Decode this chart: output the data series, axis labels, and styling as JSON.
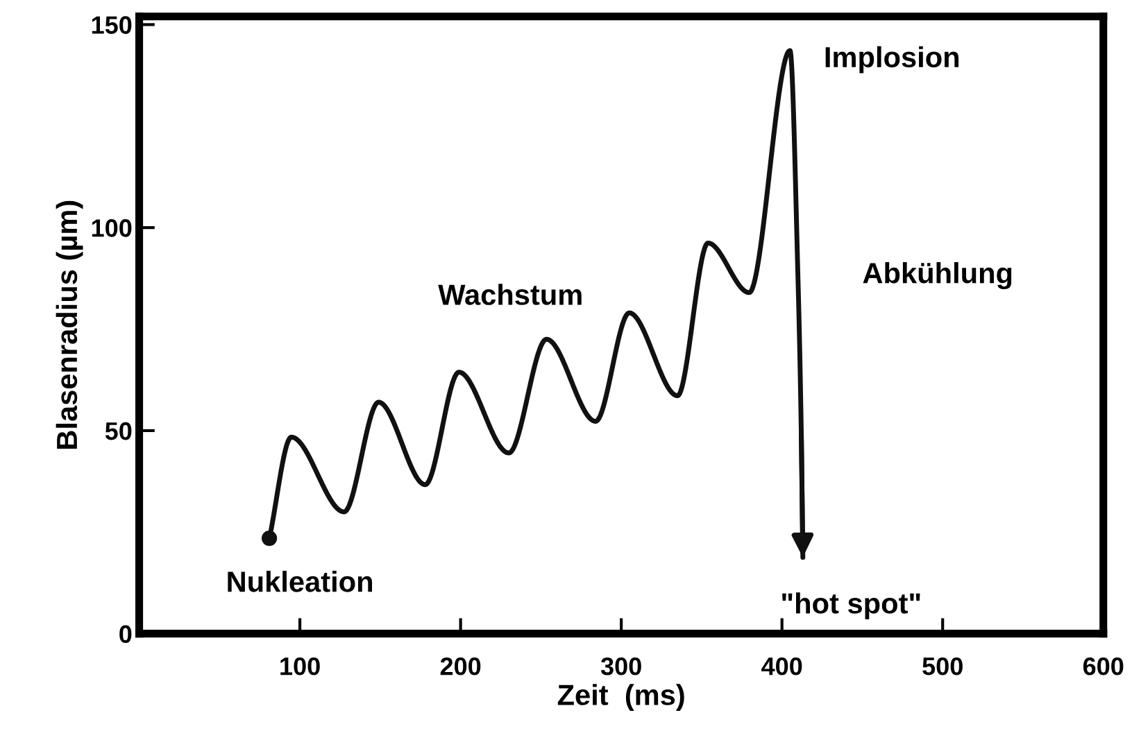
{
  "chart_data": {
    "type": "line",
    "xlabel": "Zeit  (ms)",
    "ylabel": "Blasenradius (µm)",
    "x": [
      81,
      94.7,
      127.5,
      149,
      178,
      199,
      230,
      253.5,
      284,
      305,
      335,
      354,
      379.6,
      405,
      410,
      412,
      413
    ],
    "series": [
      {
        "color": "#111111",
        "values": [
          23.5,
          48.4,
          30,
          57,
          36.7,
          64.4,
          44.5,
          72.5,
          52.3,
          79,
          58.6,
          96.2,
          84,
          143.6,
          87,
          50,
          18.8
        ]
      }
    ],
    "xlim": [
      0,
      600
    ],
    "xticks": [
      100,
      200,
      300,
      400,
      500,
      600
    ],
    "ylim": [
      0,
      152
    ],
    "yticks": [
      0,
      50,
      100,
      150
    ],
    "annotations": [
      "Nukleation",
      "Wachstum",
      "Implosion",
      "Abkühlung",
      "\"hot spot\""
    ],
    "grid": false,
    "legend": false
  }
}
